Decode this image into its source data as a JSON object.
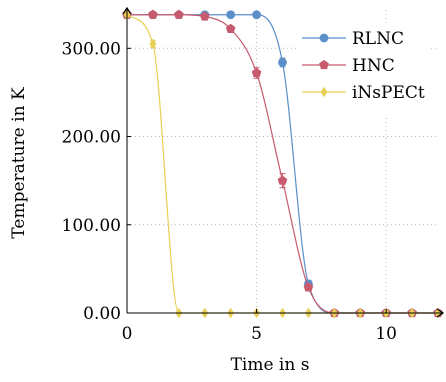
{
  "chart_data": {
    "type": "line",
    "title": "",
    "xlabel": "Time in s",
    "ylabel": "Temperature in K",
    "xlim": [
      0,
      12
    ],
    "ylim": [
      0,
      340
    ],
    "x_ticks": [
      0,
      5,
      10
    ],
    "x_tick_labels": [
      "0",
      "5",
      "10"
    ],
    "y_ticks": [
      0,
      100,
      200,
      300
    ],
    "y_tick_labels": [
      "0.00",
      "100.00",
      "200.00",
      "300.00"
    ],
    "grid": "dotted",
    "legend_position": "top-right",
    "series": [
      {
        "name": "RLNC",
        "color": "#5b8fc9",
        "marker": "circle",
        "x": [
          0,
          1,
          2,
          3,
          4,
          5,
          6,
          7,
          8,
          9,
          10,
          11,
          12
        ],
        "y": [
          338,
          338,
          338,
          338,
          338,
          338,
          284,
          33,
          0,
          0,
          0,
          0,
          0
        ],
        "err": [
          0,
          0,
          0,
          0,
          0,
          0,
          5,
          4,
          0,
          0,
          0,
          0,
          0
        ]
      },
      {
        "name": "HNC",
        "color": "#c85a6e",
        "marker": "pentagon",
        "x": [
          0,
          1,
          2,
          3,
          4,
          5,
          6,
          7,
          8,
          9,
          10,
          11,
          12
        ],
        "y": [
          338,
          338,
          338,
          336,
          322,
          272,
          150,
          29,
          0,
          0,
          0,
          0,
          0
        ],
        "err": [
          0,
          0,
          0,
          2,
          3,
          6,
          8,
          4,
          0,
          0,
          0,
          0,
          0
        ]
      },
      {
        "name": "iNsPECt",
        "color": "#e8cf55",
        "marker": "diamond",
        "x": [
          0,
          1,
          2,
          3,
          4,
          5,
          6,
          7,
          8,
          9,
          10,
          11,
          12
        ],
        "y": [
          338,
          305,
          0,
          0,
          0,
          0,
          0,
          0,
          0,
          0,
          0,
          0,
          0
        ],
        "err": [
          0,
          4,
          0,
          0,
          0,
          0,
          0,
          0,
          0,
          0,
          0,
          0,
          0
        ]
      }
    ]
  }
}
